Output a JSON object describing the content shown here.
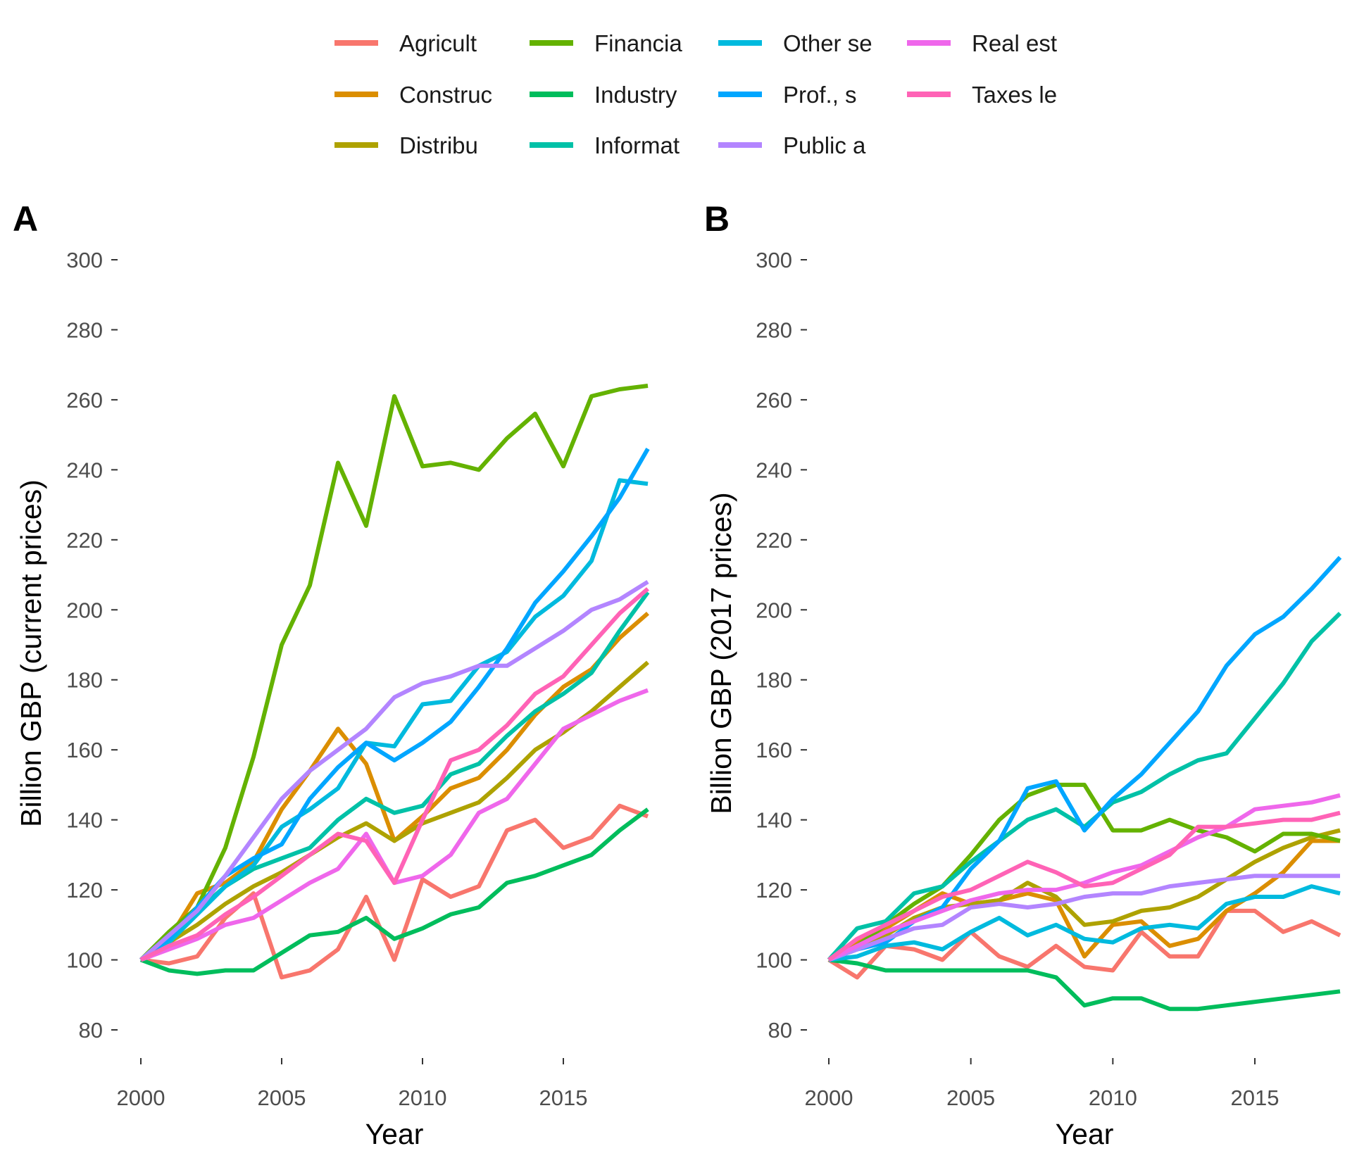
{
  "legend": {
    "items": [
      {
        "label": "Agricult",
        "color": "#F8766D"
      },
      {
        "label": "Construc",
        "color": "#DB8E00"
      },
      {
        "label": "Distribu",
        "color": "#AEA200"
      },
      {
        "label": "Financia",
        "color": "#64B200"
      },
      {
        "label": "Industry",
        "color": "#00BD5C"
      },
      {
        "label": "Informat",
        "color": "#00C1A7"
      },
      {
        "label": "Other se",
        "color": "#00BADE"
      },
      {
        "label": "Prof., s",
        "color": "#00A6FF"
      },
      {
        "label": "Public a",
        "color": "#B385FF"
      },
      {
        "label": "Real est",
        "color": "#EF67EB"
      },
      {
        "label": "Taxes le",
        "color": "#FF63B6"
      }
    ]
  },
  "chart_data": [
    {
      "type": "line",
      "panel_label": "A",
      "xlabel": "Year",
      "ylabel": "Billion GBP (current prices)",
      "xlim": [
        2000,
        2018
      ],
      "ylim": [
        70,
        300
      ],
      "x_ticks": [
        2000,
        2005,
        2010,
        2015
      ],
      "y_ticks": [
        80,
        100,
        120,
        140,
        160,
        180,
        200,
        220,
        240,
        260,
        280,
        300
      ],
      "grid": false,
      "legend_position": "top",
      "x": [
        2000,
        2001,
        2002,
        2003,
        2004,
        2005,
        2006,
        2007,
        2008,
        2009,
        2010,
        2011,
        2012,
        2013,
        2014,
        2015,
        2016,
        2017,
        2018
      ],
      "series": [
        {
          "name": "Agricult",
          "values": [
            100,
            99,
            101,
            112,
            119,
            95,
            97,
            103,
            118,
            100,
            123,
            118,
            121,
            137,
            140,
            132,
            135,
            144,
            141
          ]
        },
        {
          "name": "Construc",
          "values": [
            100,
            106,
            119,
            122,
            128,
            143,
            154,
            166,
            156,
            134,
            141,
            149,
            152,
            160,
            170,
            178,
            183,
            192,
            199
          ]
        },
        {
          "name": "Distribu",
          "values": [
            100,
            105,
            110,
            116,
            121,
            125,
            130,
            135,
            139,
            134,
            139,
            142,
            145,
            152,
            160,
            165,
            171,
            178,
            185
          ]
        },
        {
          "name": "Financia",
          "values": [
            100,
            108,
            115,
            132,
            158,
            190,
            207,
            242,
            224,
            261,
            241,
            242,
            240,
            249,
            256,
            241,
            261,
            263,
            264
          ]
        },
        {
          "name": "Industry",
          "values": [
            100,
            97,
            96,
            97,
            97,
            102,
            107,
            108,
            112,
            106,
            109,
            113,
            115,
            122,
            124,
            127,
            130,
            137,
            143
          ]
        },
        {
          "name": "Informat",
          "values": [
            100,
            107,
            114,
            121,
            126,
            129,
            132,
            140,
            146,
            142,
            144,
            153,
            156,
            164,
            171,
            176,
            182,
            194,
            205
          ]
        },
        {
          "name": "Other se",
          "values": [
            100,
            105,
            113,
            121,
            127,
            138,
            143,
            149,
            162,
            161,
            173,
            174,
            184,
            188,
            198,
            204,
            214,
            237,
            236
          ]
        },
        {
          "name": "Prof., s",
          "values": [
            100,
            106,
            115,
            124,
            129,
            133,
            146,
            155,
            162,
            157,
            162,
            168,
            178,
            189,
            202,
            211,
            221,
            232,
            246
          ]
        },
        {
          "name": "Public a",
          "values": [
            100,
            107,
            114,
            124,
            135,
            146,
            154,
            160,
            166,
            175,
            179,
            181,
            184,
            184,
            189,
            194,
            200,
            203,
            208
          ]
        },
        {
          "name": "Real est",
          "values": [
            100,
            103,
            106,
            110,
            112,
            117,
            122,
            126,
            136,
            122,
            124,
            130,
            142,
            146,
            156,
            166,
            170,
            174,
            177
          ]
        },
        {
          "name": "Taxes le",
          "values": [
            100,
            104,
            107,
            113,
            118,
            124,
            130,
            136,
            134,
            122,
            140,
            157,
            160,
            167,
            176,
            181,
            190,
            199,
            206
          ]
        }
      ]
    },
    {
      "type": "line",
      "panel_label": "B",
      "xlabel": "Year",
      "ylabel": "Billion GBP (2017 prices)",
      "xlim": [
        2000,
        2018
      ],
      "ylim": [
        70,
        300
      ],
      "x_ticks": [
        2000,
        2005,
        2010,
        2015
      ],
      "y_ticks": [
        80,
        100,
        120,
        140,
        160,
        180,
        200,
        220,
        240,
        260,
        280,
        300
      ],
      "grid": false,
      "legend_position": "top",
      "x": [
        2000,
        2001,
        2002,
        2003,
        2004,
        2005,
        2006,
        2007,
        2008,
        2009,
        2010,
        2011,
        2012,
        2013,
        2014,
        2015,
        2016,
        2017,
        2018
      ],
      "series": [
        {
          "name": "Agricult",
          "values": [
            100,
            95,
            104,
            103,
            100,
            108,
            101,
            98,
            104,
            98,
            97,
            108,
            101,
            101,
            114,
            114,
            108,
            111,
            107
          ]
        },
        {
          "name": "Construc",
          "values": [
            100,
            105,
            109,
            114,
            119,
            116,
            117,
            119,
            117,
            101,
            110,
            111,
            104,
            106,
            114,
            119,
            125,
            134,
            134
          ]
        },
        {
          "name": "Distribu",
          "values": [
            100,
            103,
            107,
            112,
            115,
            116,
            117,
            122,
            118,
            110,
            111,
            114,
            115,
            118,
            123,
            128,
            132,
            135,
            137
          ]
        },
        {
          "name": "Financia",
          "values": [
            100,
            104,
            110,
            116,
            121,
            130,
            140,
            147,
            150,
            150,
            137,
            137,
            140,
            137,
            135,
            131,
            136,
            136,
            134
          ]
        },
        {
          "name": "Industry",
          "values": [
            100,
            99,
            97,
            97,
            97,
            97,
            97,
            97,
            95,
            87,
            89,
            89,
            86,
            86,
            87,
            88,
            89,
            90,
            91
          ]
        },
        {
          "name": "Informat",
          "values": [
            100,
            109,
            111,
            119,
            121,
            128,
            134,
            140,
            143,
            138,
            145,
            148,
            153,
            157,
            159,
            169,
            179,
            191,
            199
          ]
        },
        {
          "name": "Other se",
          "values": [
            100,
            101,
            104,
            105,
            103,
            108,
            112,
            107,
            110,
            106,
            105,
            109,
            110,
            109,
            116,
            118,
            118,
            121,
            119
          ]
        },
        {
          "name": "Prof., s",
          "values": [
            100,
            103,
            105,
            111,
            115,
            126,
            134,
            149,
            151,
            137,
            146,
            153,
            162,
            171,
            184,
            193,
            198,
            206,
            215
          ]
        },
        {
          "name": "Public a",
          "values": [
            100,
            103,
            106,
            109,
            110,
            115,
            116,
            115,
            116,
            118,
            119,
            119,
            121,
            122,
            123,
            124,
            124,
            124,
            124
          ]
        },
        {
          "name": "Real est",
          "values": [
            100,
            104,
            108,
            111,
            114,
            117,
            119,
            120,
            120,
            122,
            125,
            127,
            131,
            135,
            138,
            143,
            144,
            145,
            147
          ]
        },
        {
          "name": "Taxes le",
          "values": [
            100,
            106,
            110,
            114,
            118,
            120,
            124,
            128,
            125,
            121,
            122,
            126,
            130,
            138,
            138,
            139,
            140,
            140,
            142
          ]
        }
      ]
    }
  ]
}
